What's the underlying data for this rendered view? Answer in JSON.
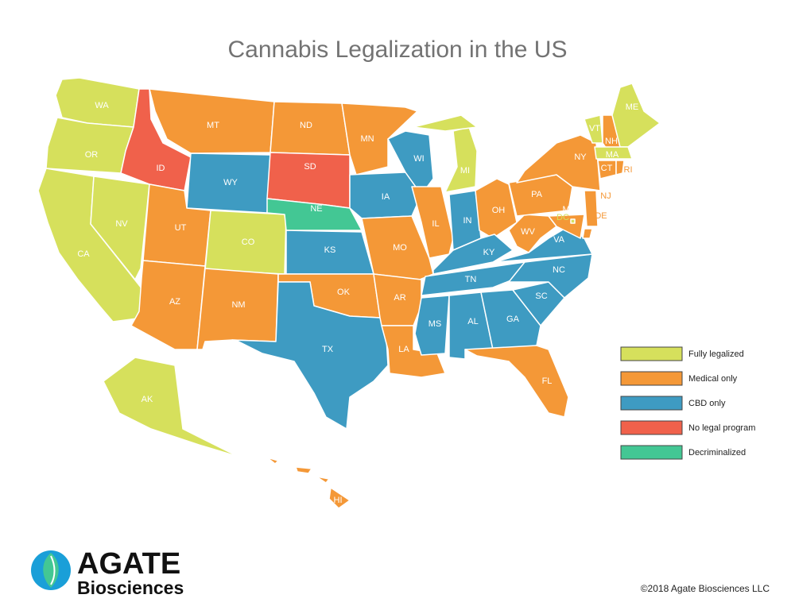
{
  "title": "Cannabis Legalization in the US",
  "legend": [
    {
      "label": "Fully legalized",
      "color": "#d6e05c"
    },
    {
      "label": "Medical only",
      "color": "#f49837"
    },
    {
      "label": "CBD only",
      "color": "#3e9bc2"
    },
    {
      "label": "No legal program",
      "color": "#f0614b"
    },
    {
      "label": "Decriminalized",
      "color": "#43c794"
    }
  ],
  "states": [
    {
      "label": "WA",
      "category": 0
    },
    {
      "label": "OR",
      "category": 0
    },
    {
      "label": "CA",
      "category": 0
    },
    {
      "label": "NV",
      "category": 0
    },
    {
      "label": "ID",
      "category": 3
    },
    {
      "label": "MT",
      "category": 1
    },
    {
      "label": "WY",
      "category": 2
    },
    {
      "label": "UT",
      "category": 1
    },
    {
      "label": "CO",
      "category": 0
    },
    {
      "label": "AZ",
      "category": 1
    },
    {
      "label": "NM",
      "category": 1
    },
    {
      "label": "ND",
      "category": 1
    },
    {
      "label": "SD",
      "category": 3
    },
    {
      "label": "NE",
      "category": 4
    },
    {
      "label": "KS",
      "category": 2
    },
    {
      "label": "OK",
      "category": 1
    },
    {
      "label": "TX",
      "category": 2
    },
    {
      "label": "MN",
      "category": 1
    },
    {
      "label": "IA",
      "category": 2
    },
    {
      "label": "MO",
      "category": 1
    },
    {
      "label": "AR",
      "category": 1
    },
    {
      "label": "LA",
      "category": 1
    },
    {
      "label": "WI",
      "category": 2
    },
    {
      "label": "IL",
      "category": 1
    },
    {
      "label": "MI",
      "category": 0
    },
    {
      "label": "IN",
      "category": 2
    },
    {
      "label": "OH",
      "category": 1
    },
    {
      "label": "KY",
      "category": 2
    },
    {
      "label": "TN",
      "category": 2
    },
    {
      "label": "MS",
      "category": 2
    },
    {
      "label": "AL",
      "category": 2
    },
    {
      "label": "GA",
      "category": 2
    },
    {
      "label": "FL",
      "category": 1
    },
    {
      "label": "SC",
      "category": 2
    },
    {
      "label": "NC",
      "category": 2
    },
    {
      "label": "VA",
      "category": 2
    },
    {
      "label": "WV",
      "category": 1
    },
    {
      "label": "PA",
      "category": 1
    },
    {
      "label": "NY",
      "category": 1
    },
    {
      "label": "VT",
      "category": 0
    },
    {
      "label": "NH",
      "category": 1
    },
    {
      "label": "ME",
      "category": 0
    },
    {
      "label": "MA",
      "category": 0
    },
    {
      "label": "CT",
      "category": 1
    },
    {
      "label": "RI",
      "category": 1
    },
    {
      "label": "NJ",
      "category": 1
    },
    {
      "label": "DE",
      "category": 1
    },
    {
      "label": "MD",
      "category": 1
    },
    {
      "label": "DC",
      "category": 0
    },
    {
      "label": "AK",
      "category": 0
    },
    {
      "label": "HI",
      "category": 1
    }
  ],
  "logo": {
    "name": "AGATE",
    "subtitle": "Biosciences"
  },
  "copyright": "©2018 Agate Biosciences LLC"
}
